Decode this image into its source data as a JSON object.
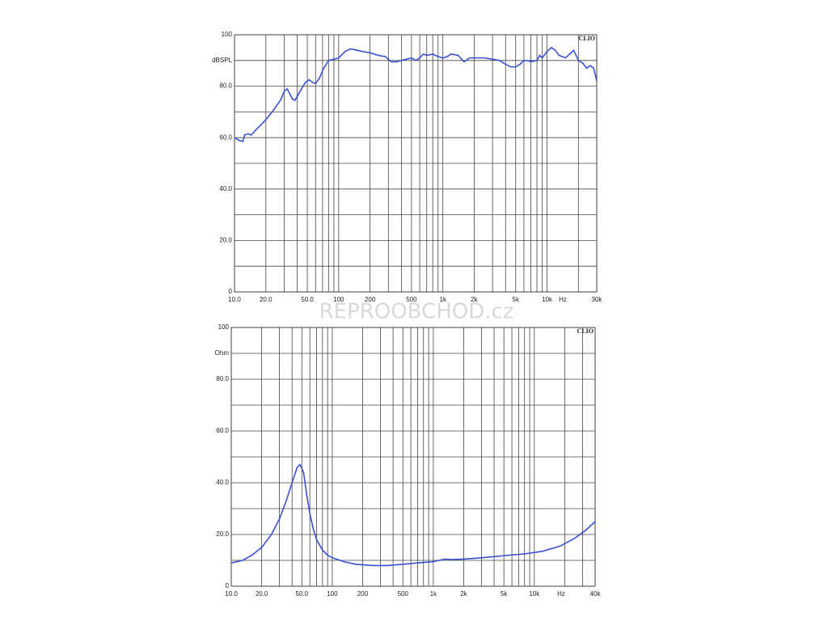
{
  "watermark": "REPROOBCHOD.cz",
  "chart_data": [
    {
      "type": "line",
      "xscale": "log",
      "brand": "CLIO",
      "y_unit": "dBSPL",
      "x_unit": "Hz",
      "color": "#3a4fd4",
      "grid": true,
      "xlim": [
        10,
        30000
      ],
      "ylim": [
        0,
        100
      ],
      "xticks": [
        {
          "value": 10,
          "label": "10.0"
        },
        {
          "value": 20,
          "label": "20.0"
        },
        {
          "value": 50,
          "label": "50.0"
        },
        100,
        200,
        500,
        {
          "value": 1000,
          "label": "1k"
        },
        {
          "value": 2000,
          "label": "2k"
        },
        {
          "value": 5000,
          "label": "5k"
        },
        {
          "value": 10000,
          "label": "10k"
        },
        {
          "value": 30000,
          "label": "30k"
        }
      ],
      "x_minor_ticks": [
        30,
        40,
        60,
        70,
        80,
        90,
        300,
        400,
        600,
        700,
        800,
        900,
        3000,
        4000,
        6000,
        7000,
        8000,
        9000,
        20000
      ],
      "yticks": [
        0,
        {
          "value": 20,
          "label": "20.0"
        },
        {
          "value": 40,
          "label": "40.0"
        },
        {
          "value": 60,
          "label": "60.0"
        },
        {
          "value": 80,
          "label": "80.0"
        },
        100
      ],
      "y_minor_ticks": [
        10,
        30,
        50,
        70,
        90
      ],
      "x": [
        10,
        11,
        12,
        12.5,
        13.5,
        14.5,
        16,
        18,
        20,
        23,
        26,
        28,
        30,
        32,
        34,
        36,
        38,
        40,
        44,
        48,
        52,
        56,
        60,
        65,
        72,
        80,
        90,
        100,
        115,
        130,
        150,
        170,
        200,
        240,
        280,
        320,
        360,
        400,
        450,
        500,
        550,
        600,
        650,
        700,
        800,
        900,
        1000,
        1100,
        1200,
        1400,
        1600,
        1800,
        2000,
        2500,
        3000,
        3500,
        4000,
        4500,
        5000,
        5500,
        6000,
        6500,
        7000,
        8000,
        8500,
        9000,
        10000,
        11000,
        12000,
        13000,
        14000,
        15000,
        16000,
        17000,
        18000,
        19000,
        20000,
        22000,
        24000,
        26000,
        28000,
        30000
      ],
      "values": [
        60,
        59,
        58.5,
        61,
        61.5,
        61,
        63,
        65,
        67,
        70,
        73,
        75,
        78,
        79,
        77,
        75,
        74.5,
        76,
        79,
        81.5,
        82.5,
        81.5,
        81,
        83,
        87,
        90,
        90.5,
        91,
        93.5,
        94.5,
        94,
        93.5,
        93,
        92,
        91.5,
        89.5,
        89.5,
        90,
        90.5,
        91,
        90,
        91,
        92.5,
        92,
        92.5,
        91.5,
        91,
        91.5,
        92.5,
        92,
        89.5,
        91,
        91,
        91,
        90.5,
        90,
        88.5,
        87.5,
        87.5,
        88.5,
        90,
        90,
        89.5,
        90,
        92,
        91,
        93.5,
        95,
        94,
        92,
        91.5,
        91,
        92,
        93,
        94,
        92,
        90,
        89,
        87,
        88,
        87,
        82
      ]
    },
    {
      "type": "line",
      "xscale": "log",
      "brand": "CLIO",
      "y_unit": "Ohm",
      "x_unit": "Hz",
      "color": "#3a4fd4",
      "grid": true,
      "xlim": [
        10,
        40000
      ],
      "ylim": [
        0,
        100
      ],
      "xticks": [
        {
          "value": 10,
          "label": "10.0"
        },
        {
          "value": 20,
          "label": "20.0"
        },
        {
          "value": 50,
          "label": "50.0"
        },
        100,
        200,
        500,
        {
          "value": 1000,
          "label": "1k"
        },
        {
          "value": 2000,
          "label": "2k"
        },
        {
          "value": 5000,
          "label": "5k"
        },
        {
          "value": 10000,
          "label": "10k"
        },
        {
          "value": 40000,
          "label": "40k"
        }
      ],
      "x_minor_ticks": [
        30,
        40,
        60,
        70,
        80,
        90,
        300,
        400,
        600,
        700,
        800,
        900,
        3000,
        4000,
        6000,
        7000,
        8000,
        9000,
        20000,
        30000
      ],
      "yticks": [
        0,
        {
          "value": 20,
          "label": "20.0"
        },
        {
          "value": 40,
          "label": "40.0"
        },
        {
          "value": 60,
          "label": "60.0"
        },
        {
          "value": 80,
          "label": "80.0"
        },
        100
      ],
      "y_minor_ticks": [
        10,
        30,
        50,
        70,
        90
      ],
      "x": [
        10,
        13,
        16,
        20,
        25,
        30,
        35,
        40,
        45,
        48,
        52,
        56,
        60,
        65,
        70,
        80,
        90,
        100,
        130,
        170,
        250,
        350,
        500,
        700,
        1000,
        1300,
        1500,
        2000,
        3000,
        5000,
        8000,
        12000,
        18000,
        25000,
        32000,
        40000
      ],
      "values": [
        9,
        10,
        12,
        15,
        20,
        26,
        33,
        40,
        46,
        47,
        44,
        35,
        28,
        22,
        18,
        14,
        12,
        11,
        9.5,
        8.5,
        8,
        8,
        8.5,
        9,
        9.5,
        10.5,
        10.3,
        10.5,
        11,
        11.8,
        12.5,
        13.5,
        15.5,
        18.5,
        21.5,
        25
      ]
    }
  ]
}
